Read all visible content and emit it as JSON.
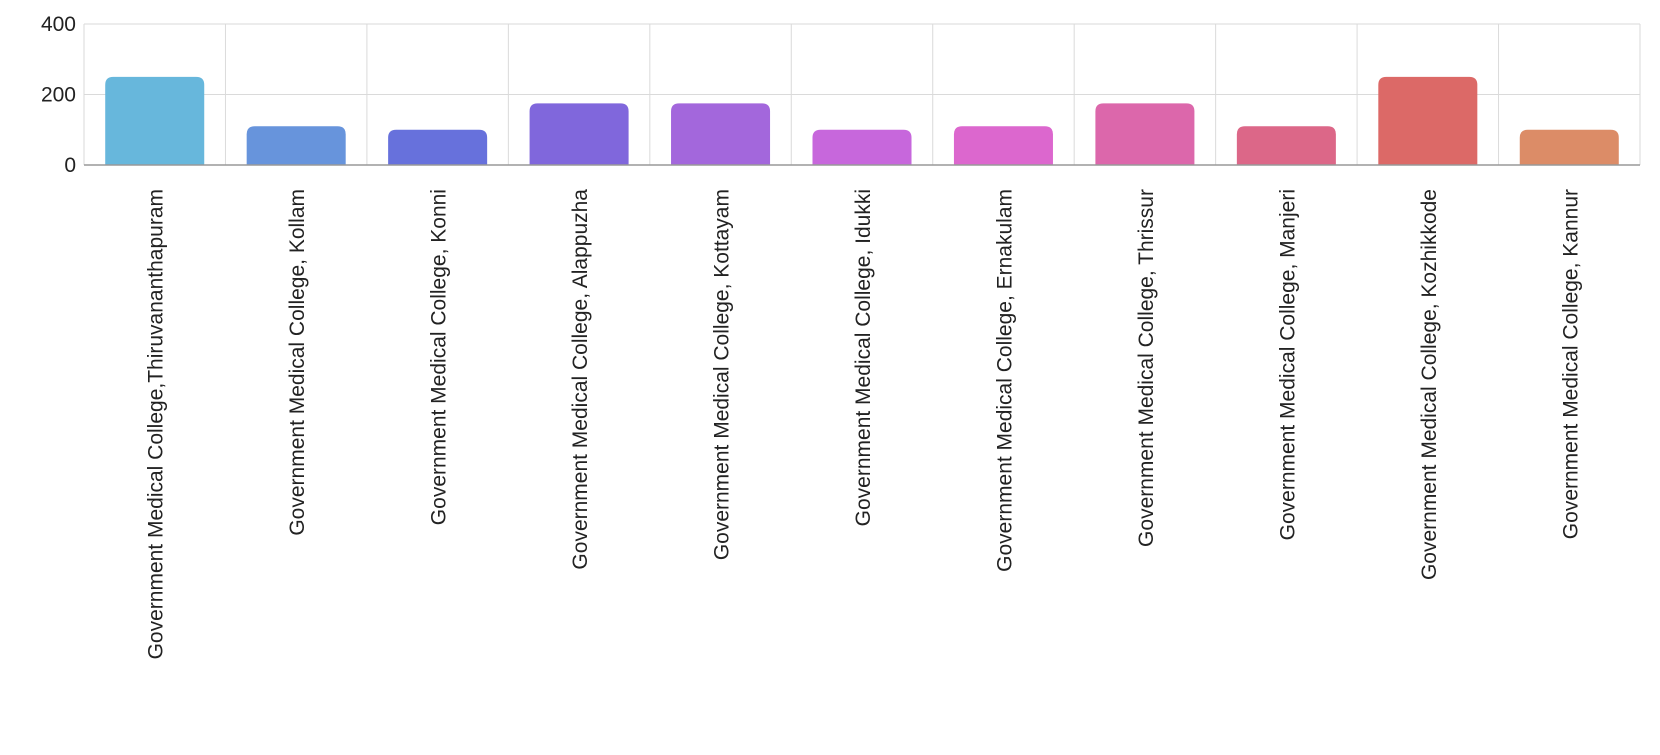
{
  "chart_data": {
    "type": "bar",
    "title": "",
    "xlabel": "",
    "ylabel": "",
    "ylim": [
      0,
      400
    ],
    "yticks": [
      "0",
      "200",
      "400"
    ],
    "grid": true,
    "categories": [
      "Government Medical College,Thiruvananthapuram",
      "Government Medical College, Kollam",
      "Government Medical College, Konni",
      "Government Medical College, Alappuzha",
      "Government Medical College, Kottayam",
      "Government Medical College, Idukki",
      "Government Medical College, Ernakulam",
      "Government Medical College, Thrissur",
      "Government Medical College, Manjeri",
      "Government Medical College, Kozhikkode",
      "Government Medical College, Kannur"
    ],
    "values": [
      250,
      110,
      100,
      175,
      175,
      100,
      110,
      175,
      110,
      250,
      100
    ],
    "colors": [
      "#67b7dc",
      "#6794dc",
      "#6771dc",
      "#8067dc",
      "#a367dc",
      "#c767dc",
      "#dc67ce",
      "#dc67ab",
      "#dc6788",
      "#dc6967",
      "#dc8c67"
    ]
  }
}
